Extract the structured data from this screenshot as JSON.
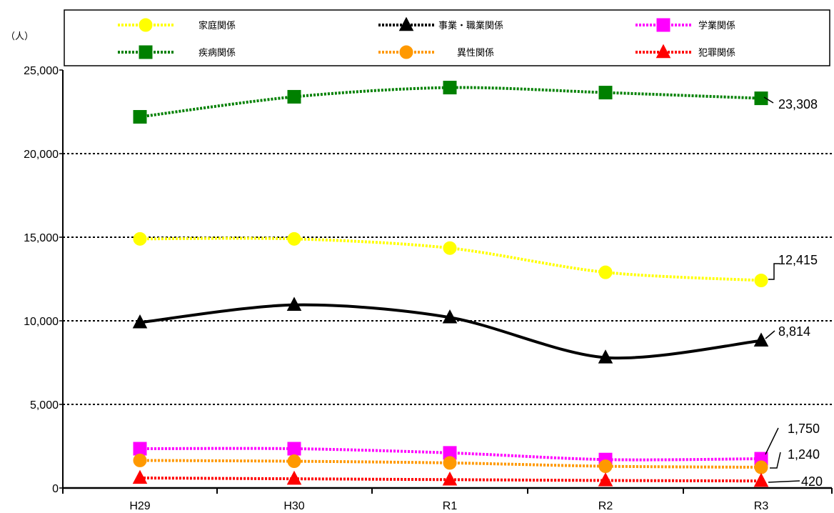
{
  "chart_data": {
    "type": "line",
    "title": "",
    "xlabel": "",
    "ylabel": "（人）",
    "ylim": [
      0,
      25000
    ],
    "yticks": [
      0,
      5000,
      10000,
      15000,
      20000,
      25000
    ],
    "ytick_labels": [
      "0",
      "5,000",
      "10,000",
      "15,000",
      "20,000",
      "25,000"
    ],
    "categories": [
      "H29",
      "H30",
      "R1",
      "R2",
      "R3"
    ],
    "grid": true,
    "legend_position": "top",
    "series": [
      {
        "name": "家庭関係",
        "color": "#ffff00",
        "marker": "circle",
        "dashed": true,
        "values": [
          14900,
          14900,
          14350,
          12900,
          12415
        ],
        "end_label": "12,415"
      },
      {
        "name": "事業・職業関係",
        "color": "#000000",
        "marker": "triangle",
        "dashed": false,
        "values": [
          9900,
          10950,
          10200,
          7800,
          8814
        ],
        "end_label": "8,814"
      },
      {
        "name": "学業関係",
        "color": "#ff00ff",
        "marker": "square",
        "dashed": true,
        "values": [
          2350,
          2350,
          2100,
          1700,
          1750
        ],
        "end_label": "1,750"
      },
      {
        "name": "疾病関係",
        "color": "#008000",
        "marker": "square",
        "dashed": true,
        "values": [
          22200,
          23400,
          23950,
          23650,
          23308
        ],
        "end_label": "23,308"
      },
      {
        "name": "異性関係",
        "color": "#ff9900",
        "marker": "circle",
        "dashed": true,
        "values": [
          1650,
          1600,
          1500,
          1300,
          1240
        ],
        "end_label": "1,240"
      },
      {
        "name": "犯罪関係",
        "color": "#ff0000",
        "marker": "triangle",
        "dashed": true,
        "values": [
          600,
          550,
          500,
          450,
          420
        ],
        "end_label": "420"
      }
    ]
  }
}
